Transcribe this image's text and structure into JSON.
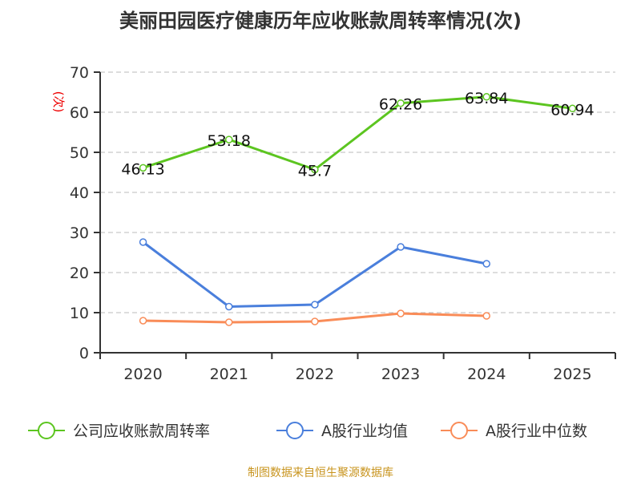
{
  "chart_data": {
    "type": "line",
    "title": "美丽田园医疗健康历年应收账款周转率情况(次)",
    "ylabel": "(次)",
    "ylim": [
      0,
      70
    ],
    "yticks": [
      0,
      10,
      20,
      30,
      40,
      50,
      60,
      70
    ],
    "categories": [
      "2020",
      "2021",
      "2022",
      "2023",
      "2024",
      "2025"
    ],
    "grid": true,
    "legend_position": "bottom",
    "series": [
      {
        "name": "公司应收账款周转率",
        "color": "#5cc520",
        "values": [
          46.13,
          53.18,
          45.7,
          62.26,
          63.84,
          60.94
        ],
        "labels": [
          "46.13",
          "53.18",
          "45.7",
          "62.26",
          "63.84",
          "60.94"
        ]
      },
      {
        "name": "A股行业均值",
        "color": "#4a7fdc",
        "values": [
          27.6,
          11.5,
          12.0,
          26.4,
          22.2,
          null
        ]
      },
      {
        "name": "A股行业中位数",
        "color": "#f98c58",
        "values": [
          8.0,
          7.6,
          7.8,
          9.8,
          9.2,
          null
        ]
      }
    ],
    "source": "制图数据来自恒生聚源数据库"
  }
}
